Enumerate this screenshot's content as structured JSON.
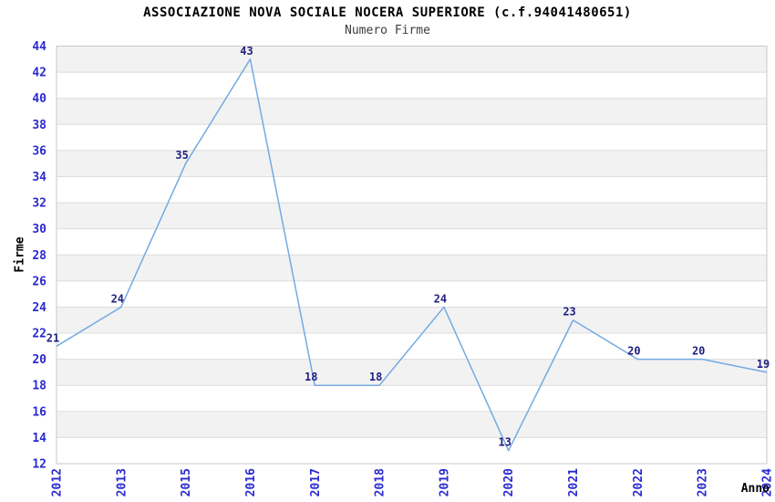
{
  "header": {
    "title": "ASSOCIAZIONE NOVA SOCIALE NOCERA SUPERIORE (c.f.94041480651)",
    "subtitle": "Numero Firme"
  },
  "chart_data": {
    "type": "line",
    "title": "ASSOCIAZIONE NOVA SOCIALE NOCERA SUPERIORE (c.f.94041480651)",
    "subtitle": "Numero Firme",
    "categories": [
      "2012",
      "2013",
      "2015",
      "2016",
      "2017",
      "2018",
      "2019",
      "2020",
      "2021",
      "2022",
      "2023",
      "2024"
    ],
    "values": [
      21,
      24,
      35,
      43,
      18,
      18,
      24,
      13,
      23,
      20,
      20,
      19
    ],
    "xlabel": "Anno",
    "ylabel": "Firme",
    "ylim": [
      12,
      44
    ],
    "ytick_step": 2,
    "grid": true,
    "legend": false,
    "x_tick_rotation_deg": 90,
    "data_labels_visible": true,
    "colors": {
      "line": "#74aae2",
      "tick_label": "#2a2ad0",
      "data_label": "#1f1f80",
      "band": "#f2f2f2",
      "gridline": "#dcdcdc",
      "frame": "#c8c8c8",
      "title": "#000000",
      "subtitle": "#3c3c3c",
      "axis_title": "#000000",
      "background": "#ffffff"
    }
  }
}
